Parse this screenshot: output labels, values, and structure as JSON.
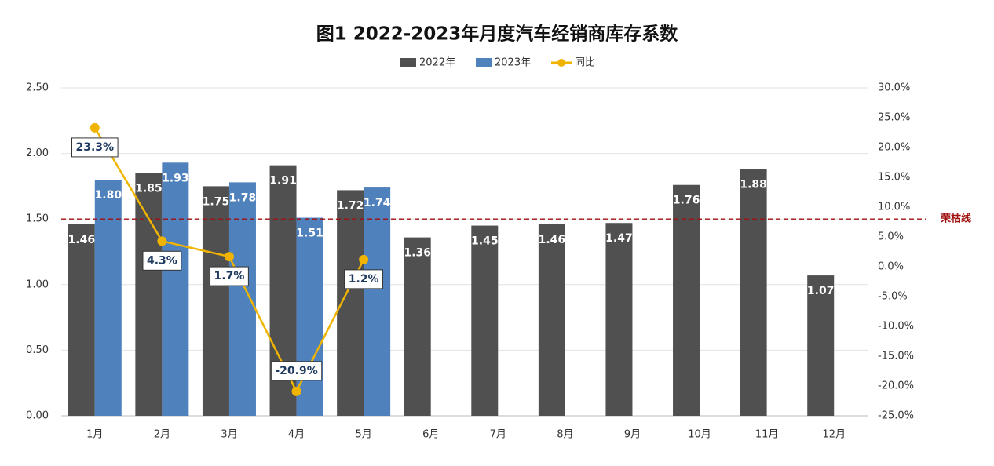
{
  "chart_data": {
    "type": "bar-line",
    "title": "图1  2022-2023年月度汽车经销商库存系数",
    "categories": [
      "1月",
      "2月",
      "3月",
      "4月",
      "5月",
      "6月",
      "7月",
      "8月",
      "9月",
      "10月",
      "11月",
      "12月"
    ],
    "series": [
      {
        "name": "2022年",
        "color": "#505050",
        "values": [
          1.46,
          1.85,
          1.75,
          1.91,
          1.72,
          1.36,
          1.45,
          1.46,
          1.47,
          1.76,
          1.88,
          1.07
        ],
        "value_labels": [
          "1.46",
          "1.85",
          "1.75",
          "1.91",
          "1.72",
          "1.36",
          "1.45",
          "1.46",
          "1.47",
          "1.76",
          "1.88",
          "1.07"
        ]
      },
      {
        "name": "2023年",
        "color": "#4f81bd",
        "values": [
          1.8,
          1.93,
          1.78,
          1.51,
          1.74,
          null,
          null,
          null,
          null,
          null,
          null,
          null
        ],
        "value_labels": [
          "1.80",
          "1.93",
          "1.78",
          "1.51",
          "1.74",
          null,
          null,
          null,
          null,
          null,
          null,
          null
        ]
      },
      {
        "name": "同比",
        "color": "#f0b400",
        "type": "line",
        "axis": "y2",
        "values": [
          23.3,
          4.3,
          1.7,
          -20.9,
          1.2,
          null,
          null,
          null,
          null,
          null,
          null,
          null
        ],
        "value_labels": [
          "23.3%",
          "4.3%",
          "1.7%",
          "-20.9%",
          "1.2%",
          null,
          null,
          null,
          null,
          null,
          null,
          null
        ]
      }
    ],
    "ylim": [
      0,
      2.5
    ],
    "yticks": [
      {
        "value": 0,
        "label": "0.00"
      },
      {
        "value": 0.5,
        "label": "0.50"
      },
      {
        "value": 1,
        "label": "1.00"
      },
      {
        "value": 1.5,
        "label": "1.50"
      },
      {
        "value": 2,
        "label": "2.00"
      },
      {
        "value": 2.5,
        "label": "2.50"
      }
    ],
    "y2lim": [
      -25,
      30
    ],
    "y2ticks": [
      {
        "value": -25,
        "label": "-25.0%"
      },
      {
        "value": -20,
        "label": "-20.0%"
      },
      {
        "value": -15,
        "label": "-15.0%"
      },
      {
        "value": -10,
        "label": "-10.0%"
      },
      {
        "value": -5,
        "label": "-5.0%"
      },
      {
        "value": 0,
        "label": "0.0%"
      },
      {
        "value": 5,
        "label": "5.0%"
      },
      {
        "value": 10,
        "label": "10.0%"
      },
      {
        "value": 15,
        "label": "15.0%"
      },
      {
        "value": 20,
        "label": "20.0%"
      },
      {
        "value": 25,
        "label": "25.0%"
      },
      {
        "value": 30,
        "label": "30.0%"
      }
    ],
    "reference_line": {
      "value": 1.5,
      "label": "荣枯线",
      "color": "#a01010"
    },
    "grid": true
  }
}
